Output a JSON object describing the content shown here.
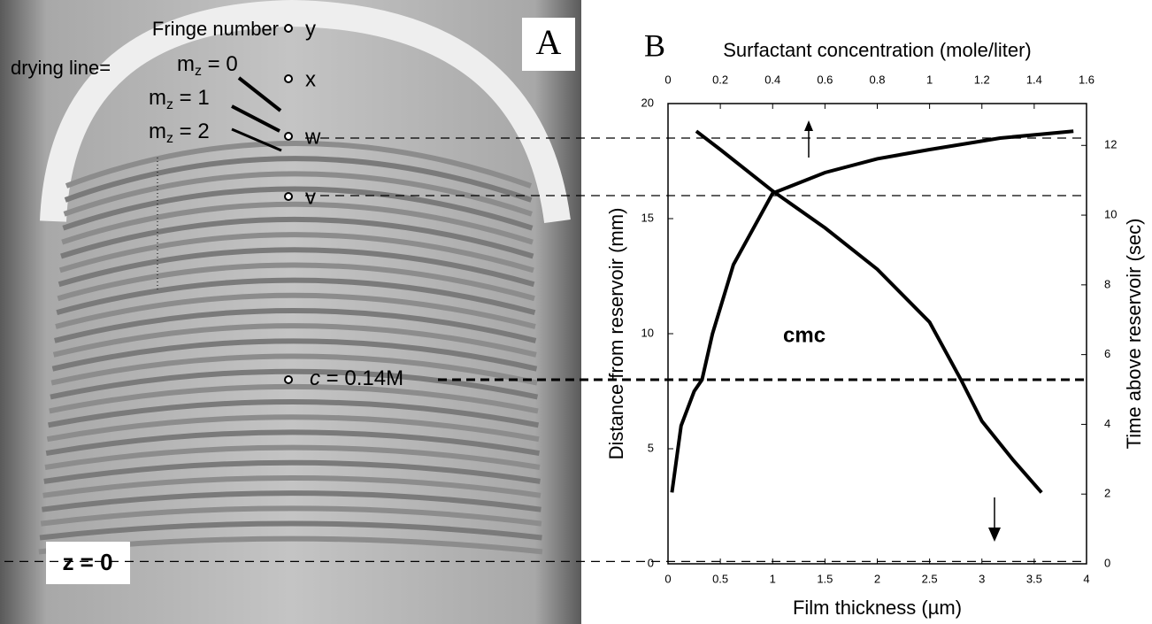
{
  "panel_a": {
    "label": "A",
    "fringe_title": "Fringe number",
    "drying_line": "drying line=",
    "fringe_labels": [
      {
        "base": "m",
        "sub": "z",
        "rest": " = 0"
      },
      {
        "base": "m",
        "sub": "z",
        "rest": " = 1"
      },
      {
        "base": "m",
        "sub": "z",
        "rest": " = 2"
      }
    ],
    "points": [
      "y",
      "x",
      "w",
      "v"
    ],
    "cmc_point": {
      "symbol": "c",
      "rest": " = 0.14M"
    },
    "origin": "z = 0"
  },
  "chart_data": {
    "type": "line",
    "label": "B",
    "x_label": "Film thickness (µm)",
    "x2_label": "Surfactant concentration (mole/liter)",
    "y_label": "Distance from reservoir (mm)",
    "y2_label": "Time above reservoir (sec)",
    "annotation": "cmc",
    "xlim": [
      0,
      4
    ],
    "xticks": [
      0,
      0.5,
      1,
      1.5,
      2,
      2.5,
      3,
      3.5,
      4
    ],
    "x2lim": [
      0,
      1.6
    ],
    "x2ticks": [
      0,
      0.2,
      0.4,
      0.6,
      0.8,
      1,
      1.2,
      1.4,
      1.6
    ],
    "ylim": [
      0,
      20
    ],
    "yticks": [
      0,
      5,
      10,
      15,
      20
    ],
    "y2lim": [
      0,
      13.2
    ],
    "y2ticks": [
      0,
      2,
      4,
      6,
      8,
      10,
      12
    ],
    "reference_lines": [
      18.5,
      16,
      8,
      0.1
    ],
    "series": [
      {
        "color": "#000000",
        "xaxis": "x",
        "x": [
          0.27,
          0.5,
          1.0,
          1.5,
          2.0,
          2.5,
          2.8,
          3.0,
          3.3,
          3.57
        ],
        "values": [
          18.8,
          18.0,
          16.2,
          14.6,
          12.8,
          10.5,
          8.0,
          6.2,
          4.5,
          3.1
        ]
      },
      {
        "color": "#000000",
        "xaxis": "x2",
        "x": [
          0.015,
          0.05,
          0.1,
          0.13,
          0.17,
          0.25,
          0.4,
          0.6,
          0.8,
          1.0,
          1.27,
          1.55
        ],
        "values": [
          3.1,
          6.0,
          7.5,
          8.0,
          10.0,
          13.0,
          16.1,
          17.0,
          17.6,
          18.0,
          18.5,
          18.8
        ]
      }
    ]
  }
}
